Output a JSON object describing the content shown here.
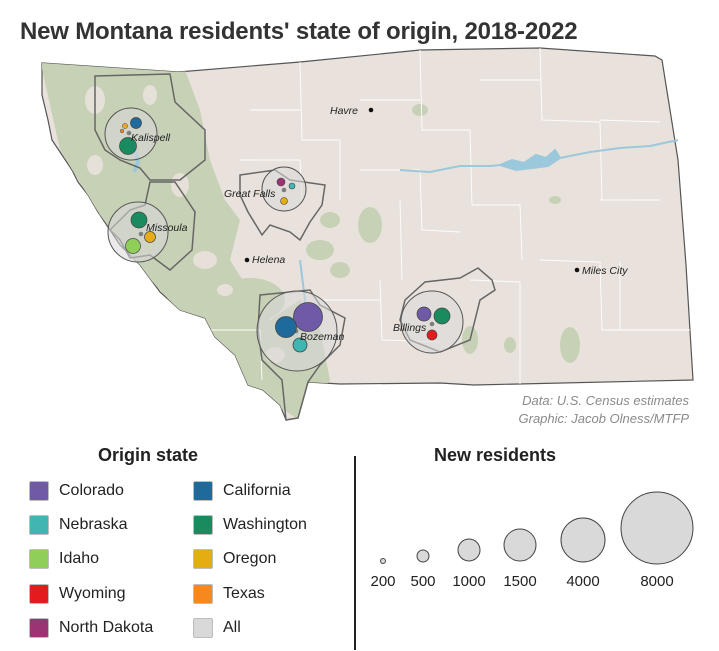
{
  "title": "New Montana residents' state of origin, 2018-2022",
  "credits": {
    "data_source": "Data: U.S. Census estimates",
    "graphic": "Graphic: Jacob Olness/MTFP"
  },
  "map": {
    "state": "Montana",
    "land_color": "#e9e2dc",
    "forest_color": "#c7d1b6",
    "water_color": "#9cc8dc"
  },
  "cities": [
    {
      "name": "Havre"
    },
    {
      "name": "Kalispell"
    },
    {
      "name": "Great Falls"
    },
    {
      "name": "Missoula"
    },
    {
      "name": "Helena"
    },
    {
      "name": "Miles City"
    },
    {
      "name": "Bozeman"
    },
    {
      "name": "Billings"
    }
  ],
  "legend_origin": {
    "title": "Origin state",
    "items": [
      {
        "label": "Colorado",
        "color": "#6f5aa8"
      },
      {
        "label": "Nebraska",
        "color": "#3fb6b2"
      },
      {
        "label": "Idaho",
        "color": "#8dcf58"
      },
      {
        "label": "Wyoming",
        "color": "#e41a1c"
      },
      {
        "label": "North Dakota",
        "color": "#9b3473"
      },
      {
        "label": "California",
        "color": "#1f6a9c"
      },
      {
        "label": "Washington",
        "color": "#1a8a5f"
      },
      {
        "label": "Oregon",
        "color": "#e6ad12"
      },
      {
        "label": "Texas",
        "color": "#f5881f"
      },
      {
        "label": "All",
        "color": "#d9d9d9"
      }
    ]
  },
  "legend_size": {
    "title": "New residents",
    "values": [
      200,
      500,
      1000,
      1500,
      4000,
      8000
    ]
  }
}
